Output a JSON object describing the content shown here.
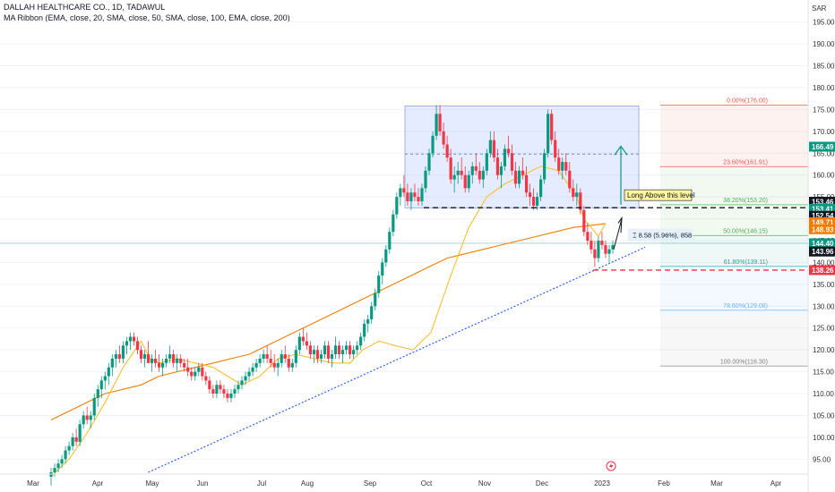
{
  "header": {
    "symbol_line": "DALLAH HEALTHCARE CO., 1D, TADAWUL",
    "indicator_line": "MA Ribbon (EMA, close, 20, SMA, close, 50, SMA, close, 100, EMA, close, 200)"
  },
  "currency": "SAR",
  "chart_data": {
    "type": "candlestick",
    "ylim": [
      92,
      198
    ],
    "y_ticks": [
      "95.00",
      "100.00",
      "105.00",
      "110.00",
      "115.00",
      "120.00",
      "125.00",
      "130.00",
      "135.00",
      "140.00",
      "145.00",
      "150.00",
      "155.00",
      "160.00",
      "165.00",
      "170.00",
      "175.00",
      "180.00",
      "185.00",
      "190.00",
      "195.00"
    ],
    "y_tick_values": [
      95,
      100,
      105,
      110,
      115,
      120,
      125,
      130,
      135,
      140,
      145,
      150,
      155,
      160,
      165,
      170,
      175,
      180,
      185,
      190,
      195
    ],
    "x_ticks": [
      "Mar",
      "Apr",
      "May",
      "Jun",
      "Jul",
      "Aug",
      "Sep",
      "Oct",
      "Nov",
      "Dec",
      "2023",
      "Feb",
      "Mar",
      "Apr"
    ],
    "fib_levels": [
      {
        "ratio": "0.00%",
        "price": 176.0,
        "label": "0.00%(176.00)",
        "color": "#ef5350"
      },
      {
        "ratio": "23.60%",
        "price": 161.91,
        "label": "23.60%(161.91)",
        "color": "#ef5350"
      },
      {
        "ratio": "38.20%",
        "price": 153.2,
        "label": "38.20%(153.20)",
        "color": "#4caf50"
      },
      {
        "ratio": "50.00%",
        "price": 146.15,
        "label": "50.00%(146.15)",
        "color": "#4caf50"
      },
      {
        "ratio": "61.80%",
        "price": 139.11,
        "label": "61.80%(139.11)",
        "color": "#26a69a"
      },
      {
        "ratio": "78.60%",
        "price": 129.08,
        "label": "78.60%(129.08)",
        "color": "#64b5f6"
      },
      {
        "ratio": "100.00%",
        "price": 116.3,
        "label": "100.00%(116.30)",
        "color": "#808080"
      }
    ],
    "range_box": {
      "top": 175.8,
      "bottom": 152.5
    },
    "range_mid": 164.8,
    "support_line": 152.54,
    "stop_line": 138.26,
    "price_tags": [
      {
        "value": "166.49",
        "price": 166.49,
        "color": "#089981"
      },
      {
        "value": "153.46",
        "price": 153.9,
        "color": "#131722"
      },
      {
        "value": "153.41",
        "price": 152.3,
        "color": "#089981"
      },
      {
        "value": "152.54",
        "price": 150.7,
        "color": "#131722"
      },
      {
        "value": "149.71",
        "price": 149.2,
        "color": "#f57c00"
      },
      {
        "value": "148.93",
        "price": 147.6,
        "color": "#f57c00"
      },
      {
        "value": "144.40",
        "price": 144.4,
        "color": "#089981"
      },
      {
        "value": "143.96",
        "price": 142.5,
        "color": "#131722"
      },
      {
        "value": "138.26",
        "price": 138.26,
        "color": "#f23645"
      }
    ],
    "annotation": "Long Above this level",
    "measure": "8.58 (5.96%), 858",
    "last_price_line": 144.4,
    "ema20": [
      [
        30,
        91
      ],
      [
        40,
        95
      ],
      [
        50,
        101
      ],
      [
        60,
        108
      ],
      [
        70,
        116
      ],
      [
        80,
        122
      ],
      [
        85,
        118
      ],
      [
        90,
        117
      ],
      [
        100,
        118
      ],
      [
        110,
        117
      ],
      [
        120,
        116
      ],
      [
        128,
        114
      ],
      [
        136,
        112
      ],
      [
        146,
        114
      ],
      [
        156,
        118
      ],
      [
        166,
        119
      ],
      [
        176,
        118
      ],
      [
        186,
        117
      ],
      [
        196,
        117
      ],
      [
        203,
        120
      ],
      [
        212,
        122
      ],
      [
        221,
        121
      ],
      [
        231,
        120
      ],
      [
        241,
        124
      ],
      [
        252,
        137
      ],
      [
        262,
        148
      ],
      [
        272,
        155
      ],
      [
        282,
        158
      ],
      [
        292,
        160
      ],
      [
        302,
        162
      ],
      [
        312,
        161
      ],
      [
        322,
        155
      ],
      [
        326,
        150
      ],
      [
        334,
        146
      ],
      [
        338,
        149
      ]
    ],
    "sma50": [
      [
        30,
        104
      ],
      [
        40,
        106
      ],
      [
        50,
        108
      ],
      [
        60,
        110
      ],
      [
        70,
        111
      ],
      [
        80,
        112
      ],
      [
        90,
        114
      ],
      [
        100,
        115
      ],
      [
        110,
        116
      ],
      [
        120,
        117
      ],
      [
        130,
        118
      ],
      [
        140,
        119
      ],
      [
        150,
        121
      ],
      [
        160,
        123
      ],
      [
        170,
        125
      ],
      [
        180,
        127
      ],
      [
        190,
        129
      ],
      [
        200,
        131
      ],
      [
        210,
        133
      ],
      [
        220,
        135
      ],
      [
        230,
        137
      ],
      [
        240,
        139
      ],
      [
        250,
        141
      ],
      [
        260,
        142
      ],
      [
        270,
        143
      ],
      [
        280,
        144
      ],
      [
        290,
        145
      ],
      [
        300,
        146
      ],
      [
        310,
        147
      ],
      [
        320,
        148
      ],
      [
        330,
        148.5
      ],
      [
        338,
        148.9
      ]
    ],
    "trendline": [
      [
        84,
        92
      ],
      [
        360,
        143.5
      ]
    ],
    "candles": [
      [
        30,
        91,
        93,
        89,
        92
      ],
      [
        32,
        92,
        94,
        91,
        93
      ],
      [
        34,
        93,
        95,
        92,
        94
      ],
      [
        36,
        94,
        96,
        93,
        95
      ],
      [
        38,
        95,
        98,
        94,
        97
      ],
      [
        40,
        97,
        99,
        96,
        98
      ],
      [
        42,
        98,
        101,
        97,
        100
      ],
      [
        44,
        100,
        102,
        98,
        99
      ],
      [
        46,
        99,
        104,
        98,
        103
      ],
      [
        48,
        103,
        106,
        102,
        105
      ],
      [
        50,
        105,
        107,
        103,
        104
      ],
      [
        52,
        104,
        106,
        102,
        105
      ],
      [
        54,
        105,
        110,
        104,
        109
      ],
      [
        56,
        109,
        112,
        107,
        111
      ],
      [
        58,
        111,
        114,
        109,
        113
      ],
      [
        60,
        113,
        115,
        111,
        114
      ],
      [
        62,
        114,
        117,
        112,
        116
      ],
      [
        64,
        116,
        119,
        114,
        118
      ],
      [
        66,
        118,
        120,
        116,
        119
      ],
      [
        68,
        119,
        121,
        117,
        118
      ],
      [
        70,
        118,
        122,
        117,
        121
      ],
      [
        72,
        121,
        123,
        119,
        122
      ],
      [
        74,
        122,
        124,
        120,
        123
      ],
      [
        76,
        123,
        124,
        121,
        122
      ],
      [
        78,
        122,
        123,
        119,
        120
      ],
      [
        80,
        120,
        121,
        117,
        118
      ],
      [
        82,
        118,
        120,
        116,
        119
      ],
      [
        84,
        119,
        122,
        117,
        117
      ],
      [
        86,
        117,
        119,
        115,
        118
      ],
      [
        88,
        118,
        120,
        116,
        117
      ],
      [
        90,
        117,
        119,
        115,
        116
      ],
      [
        92,
        116,
        118,
        114,
        117
      ],
      [
        94,
        117,
        119,
        116,
        118
      ],
      [
        96,
        118,
        121,
        117,
        119
      ],
      [
        98,
        119,
        120,
        116,
        117
      ],
      [
        100,
        117,
        119,
        115,
        118
      ],
      [
        102,
        118,
        119,
        116,
        117
      ],
      [
        104,
        117,
        118,
        115,
        116
      ],
      [
        106,
        116,
        118,
        114,
        115
      ],
      [
        108,
        115,
        116,
        113,
        114
      ],
      [
        110,
        114,
        116,
        113,
        115
      ],
      [
        112,
        115,
        117,
        114,
        116
      ],
      [
        114,
        116,
        117,
        113,
        114
      ],
      [
        116,
        114,
        115,
        112,
        113
      ],
      [
        118,
        113,
        114,
        110,
        111
      ],
      [
        120,
        111,
        112,
        109,
        110
      ],
      [
        122,
        110,
        113,
        109,
        112
      ],
      [
        124,
        112,
        113,
        110,
        111
      ],
      [
        126,
        111,
        112,
        109,
        110
      ],
      [
        128,
        110,
        111,
        108,
        109
      ],
      [
        130,
        109,
        111,
        108,
        110
      ],
      [
        132,
        110,
        112,
        109,
        111
      ],
      [
        134,
        111,
        113,
        110,
        112
      ],
      [
        136,
        112,
        114,
        111,
        113
      ],
      [
        138,
        113,
        115,
        112,
        114
      ],
      [
        140,
        114,
        116,
        113,
        115
      ],
      [
        142,
        115,
        117,
        114,
        116
      ],
      [
        144,
        116,
        118,
        115,
        117
      ],
      [
        146,
        117,
        119,
        116,
        118
      ],
      [
        148,
        118,
        120,
        117,
        119
      ],
      [
        150,
        119,
        121,
        117,
        118
      ],
      [
        152,
        118,
        120,
        116,
        117
      ],
      [
        154,
        117,
        119,
        115,
        116
      ],
      [
        156,
        116,
        118,
        114,
        117
      ],
      [
        158,
        117,
        120,
        116,
        119
      ],
      [
        160,
        119,
        121,
        117,
        118
      ],
      [
        162,
        118,
        119,
        115,
        116
      ],
      [
        164,
        116,
        118,
        115,
        117
      ],
      [
        166,
        117,
        121,
        116,
        120
      ],
      [
        168,
        120,
        124,
        119,
        123
      ],
      [
        170,
        123,
        125,
        121,
        122
      ],
      [
        172,
        122,
        124,
        120,
        121
      ],
      [
        174,
        121,
        122,
        118,
        119
      ],
      [
        176,
        119,
        121,
        117,
        120
      ],
      [
        178,
        120,
        121,
        117,
        118
      ],
      [
        180,
        118,
        120,
        117,
        119
      ],
      [
        182,
        119,
        122,
        118,
        121
      ],
      [
        184,
        121,
        122,
        117,
        118
      ],
      [
        186,
        118,
        120,
        116,
        119
      ],
      [
        188,
        119,
        123,
        118,
        121
      ],
      [
        190,
        121,
        122,
        118,
        119
      ],
      [
        192,
        119,
        121,
        117,
        120
      ],
      [
        194,
        120,
        122,
        119,
        121
      ],
      [
        196,
        121,
        122,
        118,
        119
      ],
      [
        198,
        119,
        121,
        118,
        120
      ],
      [
        200,
        120,
        122,
        119,
        121
      ],
      [
        202,
        121,
        124,
        120,
        123
      ],
      [
        204,
        123,
        127,
        122,
        126
      ],
      [
        206,
        126,
        128,
        124,
        127
      ],
      [
        208,
        127,
        131,
        126,
        130
      ],
      [
        210,
        130,
        134,
        129,
        133
      ],
      [
        212,
        133,
        138,
        132,
        137
      ],
      [
        214,
        137,
        141,
        135,
        140
      ],
      [
        216,
        140,
        144,
        139,
        143
      ],
      [
        218,
        143,
        148,
        142,
        147
      ],
      [
        220,
        147,
        152,
        146,
        151
      ],
      [
        222,
        151,
        156,
        150,
        155
      ],
      [
        224,
        155,
        158,
        153,
        157
      ],
      [
        226,
        157,
        160,
        155,
        156
      ],
      [
        228,
        156,
        158,
        153,
        154
      ],
      [
        230,
        154,
        157,
        152,
        156
      ],
      [
        232,
        156,
        158,
        154,
        155
      ],
      [
        234,
        155,
        157,
        153,
        154
      ],
      [
        236,
        154,
        158,
        153,
        157
      ],
      [
        238,
        157,
        162,
        156,
        161
      ],
      [
        240,
        161,
        166,
        160,
        165
      ],
      [
        242,
        165,
        170,
        164,
        169
      ],
      [
        244,
        169,
        176,
        168,
        174
      ],
      [
        246,
        174,
        176,
        169,
        170
      ],
      [
        248,
        170,
        172,
        166,
        167
      ],
      [
        250,
        167,
        169,
        163,
        164
      ],
      [
        252,
        164,
        166,
        158,
        159
      ],
      [
        254,
        159,
        162,
        156,
        160
      ],
      [
        256,
        160,
        163,
        158,
        161
      ],
      [
        258,
        161,
        164,
        159,
        160
      ],
      [
        260,
        160,
        162,
        156,
        157
      ],
      [
        262,
        157,
        161,
        156,
        160
      ],
      [
        264,
        160,
        163,
        158,
        162
      ],
      [
        266,
        162,
        165,
        160,
        161
      ],
      [
        268,
        161,
        163,
        158,
        159
      ],
      [
        270,
        159,
        162,
        157,
        161
      ],
      [
        272,
        161,
        166,
        160,
        165
      ],
      [
        274,
        165,
        170,
        164,
        168
      ],
      [
        276,
        168,
        170,
        163,
        164
      ],
      [
        278,
        164,
        166,
        159,
        160
      ],
      [
        280,
        160,
        163,
        157,
        162
      ],
      [
        282,
        162,
        167,
        161,
        166
      ],
      [
        284,
        166,
        169,
        164,
        165
      ],
      [
        286,
        165,
        167,
        160,
        161
      ],
      [
        288,
        161,
        163,
        157,
        158
      ],
      [
        290,
        158,
        162,
        157,
        161
      ],
      [
        292,
        161,
        164,
        159,
        160
      ],
      [
        294,
        160,
        162,
        155,
        156
      ],
      [
        296,
        156,
        158,
        153,
        155
      ],
      [
        298,
        155,
        157,
        152,
        153
      ],
      [
        300,
        153,
        156,
        152,
        155
      ],
      [
        302,
        155,
        160,
        154,
        159
      ],
      [
        304,
        159,
        166,
        158,
        165
      ],
      [
        306,
        165,
        175,
        164,
        174
      ],
      [
        308,
        174,
        175,
        167,
        168
      ],
      [
        310,
        168,
        170,
        163,
        164
      ],
      [
        312,
        164,
        166,
        160,
        161
      ],
      [
        314,
        161,
        164,
        159,
        163
      ],
      [
        316,
        163,
        165,
        160,
        161
      ],
      [
        318,
        161,
        163,
        156,
        157
      ],
      [
        320,
        157,
        159,
        154,
        155
      ],
      [
        322,
        155,
        158,
        153,
        156
      ],
      [
        324,
        156,
        157,
        151,
        152
      ],
      [
        326,
        152,
        153,
        146,
        147
      ],
      [
        328,
        147,
        149,
        144,
        145
      ],
      [
        330,
        145,
        147,
        142,
        143
      ],
      [
        332,
        143,
        145,
        139,
        141
      ],
      [
        334,
        141,
        146,
        140,
        145
      ],
      [
        336,
        145,
        147,
        143,
        144
      ],
      [
        338,
        144,
        145,
        141,
        142
      ],
      [
        340,
        142,
        144,
        140,
        143
      ],
      [
        342,
        143,
        145,
        142,
        144
      ]
    ]
  }
}
